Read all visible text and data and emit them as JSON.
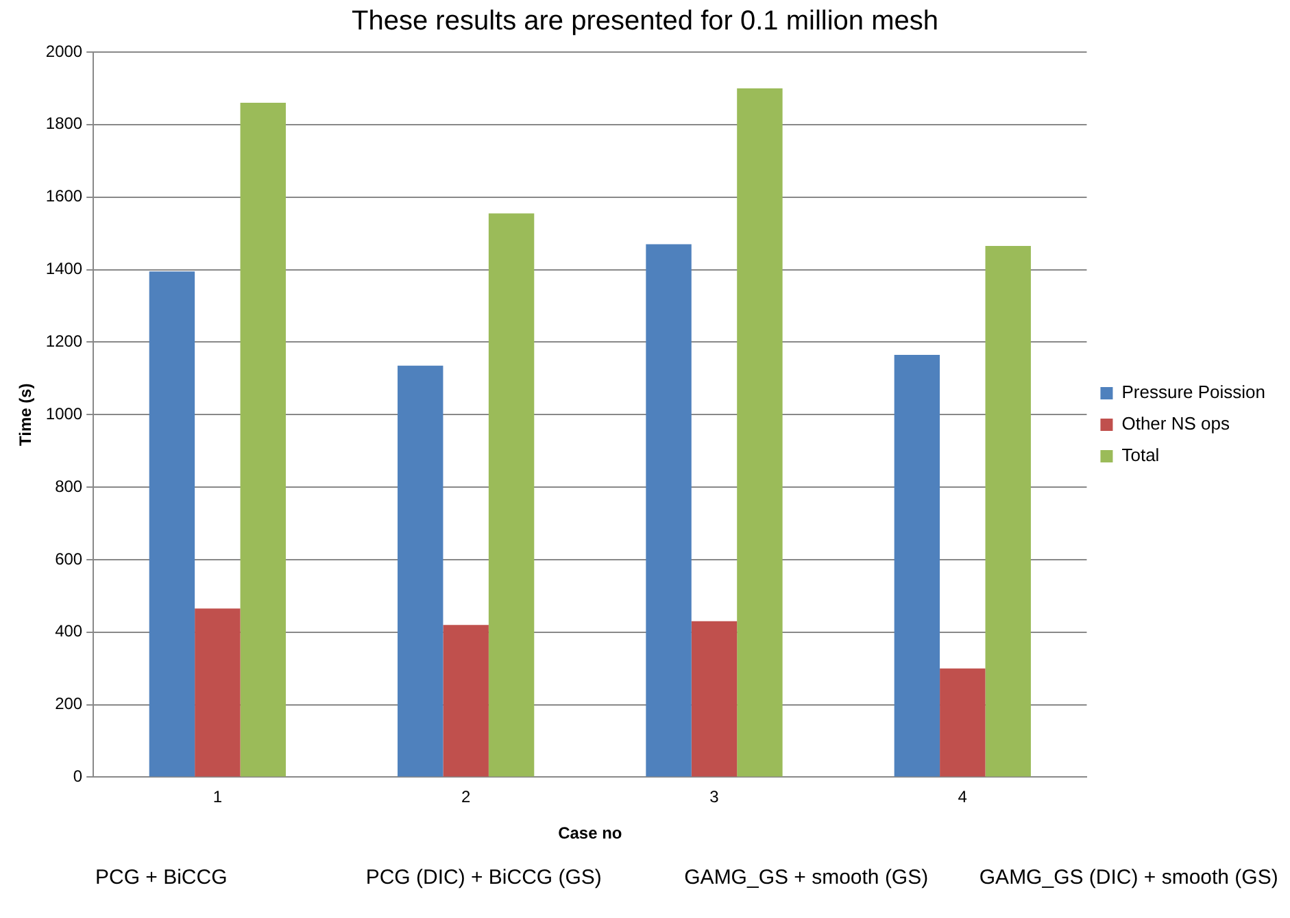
{
  "chart_data": {
    "type": "bar",
    "title": "These results are presented for 0.1 million mesh",
    "xlabel": "Case no",
    "ylabel": "Time (s)",
    "categories": [
      "1",
      "2",
      "3",
      "4"
    ],
    "series": [
      {
        "name": "Pressure Poission",
        "color": "#4f81bd",
        "values": [
          1395,
          1135,
          1470,
          1165
        ]
      },
      {
        "name": "Other NS ops",
        "color": "#c0504d",
        "values": [
          465,
          420,
          430,
          300
        ]
      },
      {
        "name": "Total",
        "color": "#9bbb59",
        "values": [
          1860,
          1555,
          1900,
          1465
        ]
      }
    ],
    "ylim": [
      0,
      2000
    ],
    "yticks": [
      0,
      200,
      400,
      600,
      800,
      1000,
      1200,
      1400,
      1600,
      1800,
      2000
    ],
    "grid": "y",
    "legend": "right",
    "annotations": [
      "PCG + BiCCG",
      "PCG (DIC) + BiCCG (GS)",
      "GAMG_GS + smooth (GS)",
      "GAMG_GS (DIC) + smooth (GS)"
    ]
  }
}
